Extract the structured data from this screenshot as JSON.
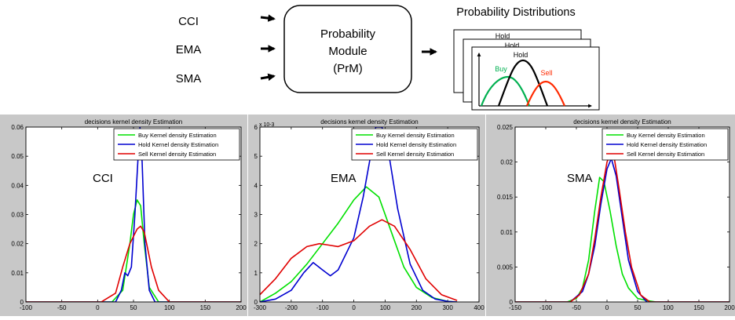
{
  "diagram": {
    "inputs": [
      "CCI",
      "EMA",
      "SMA"
    ],
    "module": [
      "Probability",
      "Module",
      "(PrM)"
    ],
    "output_title": "Probability Distributions",
    "card_labels": {
      "buy": "Buy",
      "hold": "Hold",
      "sell": "Sell"
    },
    "back_card_labels": [
      "Hold",
      "Hold"
    ]
  },
  "series_colors": {
    "buy": "#00e000",
    "hold": "#0000d0",
    "sell": "#e00000"
  },
  "chart_data": [
    {
      "type": "line",
      "title": "decisions kernel density Estimation",
      "annotation": "CCI",
      "exponent": "",
      "xlim": [
        -100,
        200
      ],
      "ylim": [
        0,
        0.06
      ],
      "xticks": [
        -100,
        -50,
        0,
        50,
        100,
        150,
        200
      ],
      "yticks": [
        0,
        0.01,
        0.02,
        0.03,
        0.04,
        0.05,
        0.06
      ],
      "ytick_labels": [
        "0",
        "0.01",
        "0.02",
        "0.03",
        "0.04",
        "0.05",
        "0.06"
      ],
      "legend_position": "top-right",
      "series": [
        {
          "key": "buy",
          "name": "Buy Kernel density Estimation",
          "x": [
            -100,
            20,
            35,
            45,
            50,
            55,
            60,
            65,
            72,
            85,
            200
          ],
          "y": [
            0,
            0,
            0.004,
            0.02,
            0.03,
            0.035,
            0.033,
            0.02,
            0.005,
            0,
            0
          ]
        },
        {
          "key": "hold",
          "name": "Hold Kernel density Estimation",
          "x": [
            -100,
            25,
            33,
            38,
            42,
            47,
            52,
            56,
            59,
            62,
            66,
            72,
            80,
            200
          ],
          "y": [
            0,
            0,
            0.004,
            0.01,
            0.009,
            0.012,
            0.03,
            0.048,
            0.06,
            0.048,
            0.02,
            0.004,
            0,
            0
          ]
        },
        {
          "key": "sell",
          "name": "Sell Kernel density Estimation",
          "x": [
            -100,
            5,
            25,
            35,
            45,
            55,
            60,
            65,
            75,
            85,
            100,
            200
          ],
          "y": [
            0,
            0,
            0.003,
            0.012,
            0.02,
            0.025,
            0.026,
            0.024,
            0.012,
            0.004,
            0,
            0
          ]
        }
      ]
    },
    {
      "type": "line",
      "title": "decisions kernel density Estimation",
      "annotation": "EMA",
      "exponent": "x 10-3",
      "xlim": [
        -300,
        400
      ],
      "ylim": [
        0,
        6
      ],
      "xticks": [
        -300,
        -200,
        -100,
        0,
        100,
        200,
        300,
        400
      ],
      "yticks": [
        0,
        1,
        2,
        3,
        4,
        5,
        6
      ],
      "ytick_labels": [
        "0",
        "1",
        "2",
        "3",
        "4",
        "5",
        "6"
      ],
      "legend_position": "top-right",
      "series": [
        {
          "key": "buy",
          "name": "Buy Kernel density Estimation",
          "x": [
            -300,
            -250,
            -200,
            -150,
            -100,
            -50,
            0,
            40,
            80,
            120,
            160,
            200,
            250,
            300,
            330
          ],
          "y": [
            0,
            0.3,
            0.7,
            1.3,
            2.0,
            2.7,
            3.5,
            3.95,
            3.6,
            2.4,
            1.2,
            0.5,
            0.15,
            0.02,
            0
          ]
        },
        {
          "key": "hold",
          "name": "Hold Kernel density Estimation",
          "x": [
            -300,
            -250,
            -200,
            -160,
            -130,
            -100,
            -75,
            -50,
            0,
            30,
            50,
            70,
            90,
            110,
            140,
            180,
            220,
            260,
            300,
            330
          ],
          "y": [
            0,
            0.1,
            0.4,
            1.0,
            1.35,
            1.1,
            0.9,
            1.1,
            2.2,
            3.6,
            4.8,
            6.0,
            6.0,
            5.2,
            3.2,
            1.3,
            0.4,
            0.1,
            0.02,
            0
          ]
        },
        {
          "key": "sell",
          "name": "Sell Kernel density Estimation",
          "x": [
            -300,
            -250,
            -200,
            -150,
            -110,
            -80,
            -50,
            0,
            50,
            90,
            130,
            180,
            230,
            280,
            330
          ],
          "y": [
            0.25,
            0.8,
            1.5,
            1.9,
            2.0,
            1.95,
            1.9,
            2.1,
            2.6,
            2.82,
            2.6,
            1.8,
            0.8,
            0.25,
            0.05
          ]
        }
      ]
    },
    {
      "type": "line",
      "title": "decisions kernel density Estimation",
      "annotation": "SMA",
      "exponent": "",
      "xlim": [
        -150,
        200
      ],
      "ylim": [
        0,
        0.025
      ],
      "xticks": [
        -150,
        -100,
        -50,
        0,
        50,
        100,
        150,
        200
      ],
      "yticks": [
        0,
        0.005,
        0.01,
        0.015,
        0.02,
        0.025
      ],
      "ytick_labels": [
        "0",
        "0.005",
        "0.01",
        "0.015",
        "0.02",
        "0.025"
      ],
      "legend_position": "top-right",
      "series": [
        {
          "key": "buy",
          "name": "Buy Kernel density Estimation",
          "x": [
            -150,
            -65,
            -50,
            -40,
            -30,
            -20,
            -12,
            -5,
            5,
            15,
            25,
            35,
            50,
            65,
            80,
            200
          ],
          "y": [
            0,
            0,
            0.0005,
            0.002,
            0.006,
            0.013,
            0.0178,
            0.0172,
            0.013,
            0.008,
            0.004,
            0.002,
            0.0005,
            0.0002,
            0,
            0
          ]
        },
        {
          "key": "hold",
          "name": "Hold Kernel density Estimation",
          "x": [
            -150,
            -60,
            -40,
            -30,
            -20,
            -10,
            0,
            7,
            15,
            25,
            35,
            50,
            65,
            200
          ],
          "y": [
            0,
            0,
            0.0015,
            0.004,
            0.008,
            0.014,
            0.019,
            0.0205,
            0.018,
            0.012,
            0.006,
            0.0015,
            0,
            0
          ]
        },
        {
          "key": "sell",
          "name": "Sell Kernel density Estimation",
          "x": [
            -150,
            -60,
            -45,
            -30,
            -20,
            -10,
            0,
            5,
            12,
            20,
            30,
            40,
            55,
            70,
            200
          ],
          "y": [
            0,
            0,
            0.001,
            0.004,
            0.009,
            0.015,
            0.02,
            0.021,
            0.0205,
            0.016,
            0.01,
            0.005,
            0.001,
            0,
            0
          ]
        }
      ]
    }
  ]
}
